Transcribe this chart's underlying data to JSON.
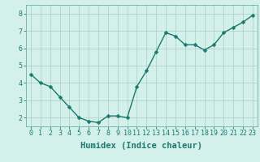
{
  "x": [
    0,
    1,
    2,
    3,
    4,
    5,
    6,
    7,
    8,
    9,
    10,
    11,
    12,
    13,
    14,
    15,
    16,
    17,
    18,
    19,
    20,
    21,
    22,
    23
  ],
  "y": [
    4.5,
    4.0,
    3.8,
    3.2,
    2.6,
    2.0,
    1.8,
    1.72,
    2.1,
    2.1,
    2.0,
    3.8,
    4.7,
    5.8,
    6.9,
    6.7,
    6.2,
    6.2,
    5.9,
    6.2,
    6.9,
    7.2,
    7.5,
    7.9
  ],
  "line_color": "#1a7a6e",
  "marker_color": "#1a7a6e",
  "bg_color": "#d4f0eb",
  "grid_color": "#aed4cc",
  "tick_color": "#1a7a6e",
  "spine_color": "#7ab8b0",
  "xlabel": "Humidex (Indice chaleur)",
  "xlim": [
    -0.5,
    23.5
  ],
  "ylim": [
    1.5,
    8.5
  ],
  "yticks": [
    2,
    3,
    4,
    5,
    6,
    7,
    8
  ],
  "xticks": [
    0,
    1,
    2,
    3,
    4,
    5,
    6,
    7,
    8,
    9,
    10,
    11,
    12,
    13,
    14,
    15,
    16,
    17,
    18,
    19,
    20,
    21,
    22,
    23
  ],
  "marker_size": 2.5,
  "linewidth": 1.0,
  "xlabel_fontsize": 7.5,
  "tick_fontsize": 6.0
}
